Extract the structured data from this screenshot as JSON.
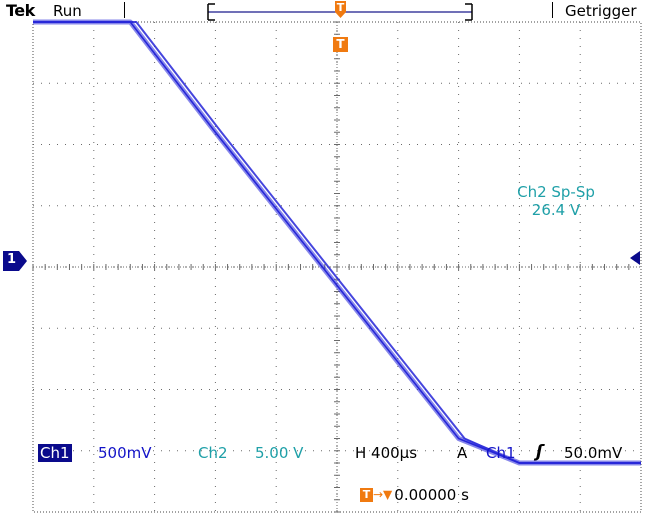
{
  "header": {
    "brand": "Tek",
    "run_state": "Run",
    "trigger_status": "Getrigger"
  },
  "readouts": {
    "ch1_label": "Ch1",
    "ch1_scale": "500mV",
    "ch2_label": "Ch2",
    "ch2_scale": "5.00 V",
    "horizontal": "H 400µs",
    "trigger_mode": "A",
    "trigger_source": "Ch1",
    "trigger_slope_symbol": "ʃ",
    "trigger_level": "50.0mV",
    "trigger_position_time": "0.00000 s"
  },
  "measurement": {
    "name": "Ch2 Sp-Sp",
    "value": "26.4 V"
  },
  "markers": {
    "ch1_ground": "1",
    "trigger_position": "T",
    "trigger_arrow_text": "→▼"
  },
  "colors": {
    "trace": "#2525d8",
    "grid": "#6a6a6a",
    "ch2": "#1fa0a8",
    "trigger": "#f07a10",
    "ch1_box": "#0a0a8c"
  },
  "chart_data": {
    "type": "line",
    "series": [
      {
        "name": "Ch1",
        "x": [
          0.0,
          1.1,
          1.6,
          3.0,
          4.0,
          5.0,
          6.0,
          7.0,
          8.0,
          10.0
        ],
        "y": [
          4.0,
          4.0,
          4.0,
          2.2,
          0.95,
          -0.3,
          -1.55,
          -2.8,
          -3.2,
          -3.2
        ]
      }
    ],
    "xlim": [
      0,
      10
    ],
    "ylim": [
      -4,
      4
    ],
    "grid": true
  }
}
